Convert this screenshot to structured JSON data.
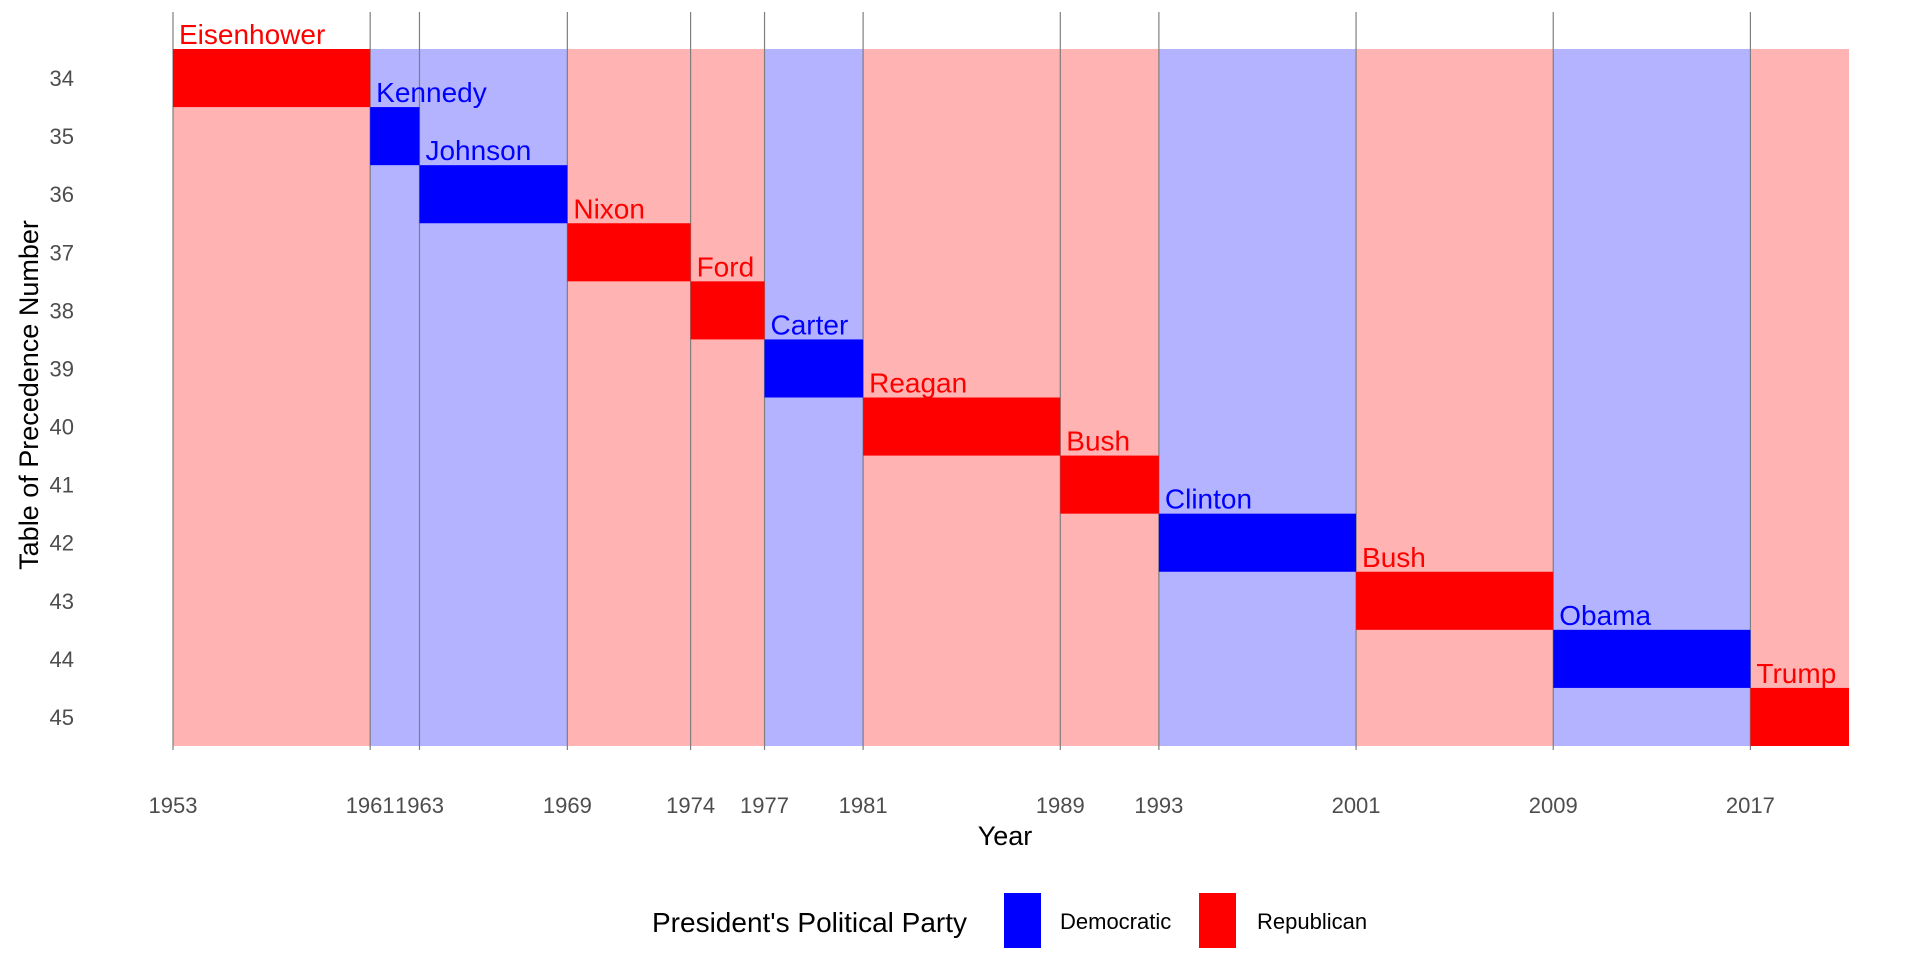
{
  "chart_data": {
    "type": "bar",
    "subtype": "timeline",
    "title": "",
    "xlabel": "Year",
    "ylabel": "Table of Precedence Number",
    "xlim": [
      1953,
      2021
    ],
    "ylim": [
      34,
      45
    ],
    "y_reversed": true,
    "x_ticks": [
      1953,
      1961,
      1963,
      1969,
      1974,
      1977,
      1981,
      1989,
      1993,
      2001,
      2009,
      2017
    ],
    "y_ticks": [
      34,
      35,
      36,
      37,
      38,
      39,
      40,
      41,
      42,
      43,
      44,
      45
    ],
    "grid": "vertical lines at term boundaries",
    "legend": {
      "title": "President's Political Party",
      "placement": "bottom",
      "entries": [
        {
          "label": "Democratic",
          "color": "#0000ff"
        },
        {
          "label": "Republican",
          "color": "#ff0000"
        }
      ]
    },
    "colors": {
      "Democratic": "#0000ff",
      "Republican": "#ff0000",
      "Democratic_band": "#b3b3ff",
      "Republican_band": "#ffb3b3",
      "gridline": "#7f7f7f"
    },
    "presidents": [
      {
        "name": "Eisenhower",
        "number": 34,
        "start": 1953,
        "end": 1961,
        "party": "Republican"
      },
      {
        "name": "Kennedy",
        "number": 35,
        "start": 1961,
        "end": 1963,
        "party": "Democratic"
      },
      {
        "name": "Johnson",
        "number": 36,
        "start": 1963,
        "end": 1969,
        "party": "Democratic"
      },
      {
        "name": "Nixon",
        "number": 37,
        "start": 1969,
        "end": 1974,
        "party": "Republican"
      },
      {
        "name": "Ford",
        "number": 38,
        "start": 1974,
        "end": 1977,
        "party": "Republican"
      },
      {
        "name": "Carter",
        "number": 39,
        "start": 1977,
        "end": 1981,
        "party": "Democratic"
      },
      {
        "name": "Reagan",
        "number": 40,
        "start": 1981,
        "end": 1989,
        "party": "Republican"
      },
      {
        "name": "Bush",
        "number": 41,
        "start": 1989,
        "end": 1993,
        "party": "Republican"
      },
      {
        "name": "Clinton",
        "number": 42,
        "start": 1993,
        "end": 2001,
        "party": "Democratic"
      },
      {
        "name": "Bush",
        "number": 43,
        "start": 2001,
        "end": 2009,
        "party": "Republican"
      },
      {
        "name": "Obama",
        "number": 44,
        "start": 2009,
        "end": 2017,
        "party": "Democratic"
      },
      {
        "name": "Trump",
        "number": 45,
        "start": 2017,
        "end": 2021,
        "party": "Republican"
      }
    ]
  }
}
